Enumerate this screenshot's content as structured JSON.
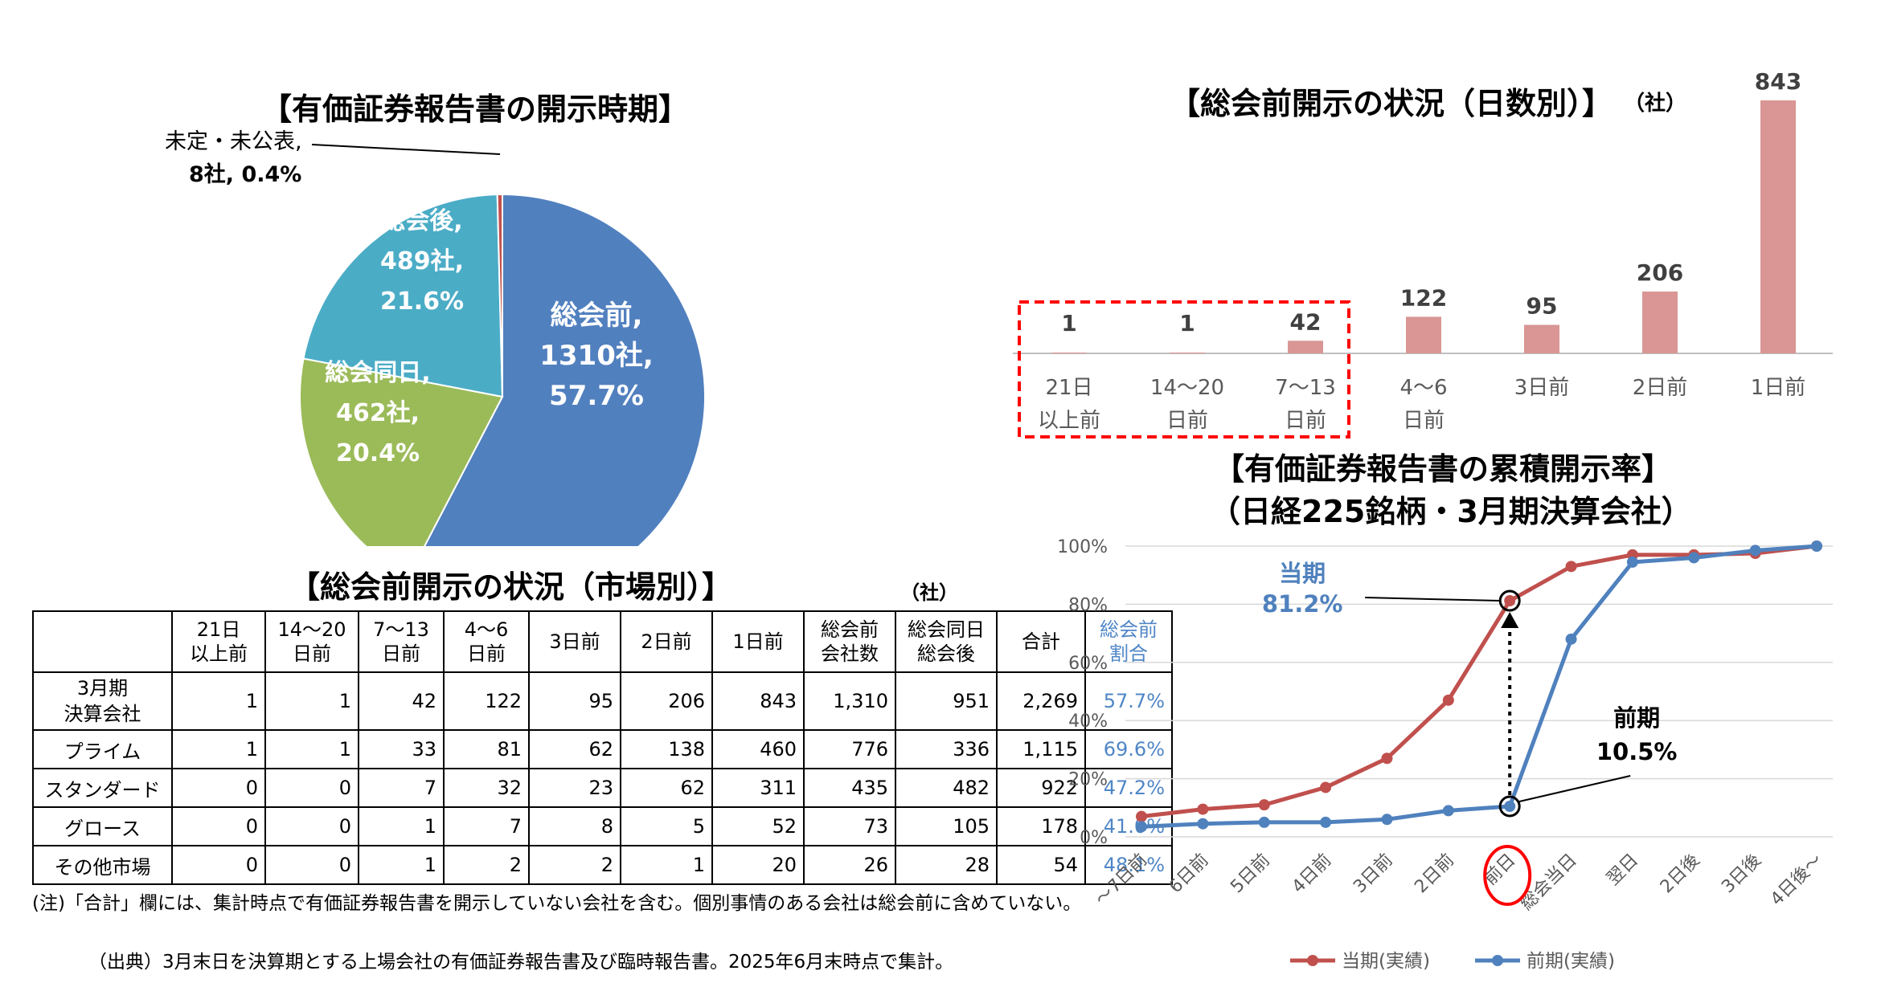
{
  "pie": {
    "title": "【有価証券報告書の開示時期】",
    "slices": [
      {
        "label": "総会前,",
        "count": "1310社,",
        "pct": "57.7%",
        "value": 57.7,
        "color": "#5180bf"
      },
      {
        "label": "総会同日,",
        "count": "462社,",
        "pct": "20.4%",
        "value": 20.4,
        "color": "#9bbb59"
      },
      {
        "label": "総会後,",
        "count": "489社,",
        "pct": "21.6%",
        "value": 21.6,
        "color": "#4bacc6"
      },
      {
        "label": "未定・未公表,",
        "count": "8社,",
        "pct": "0.4%",
        "value": 0.4,
        "color": "#c0504d"
      }
    ]
  },
  "bar": {
    "title": "【総会前開示の状況（日数別）】",
    "unit": "（社）",
    "color": "#d99694",
    "bars": [
      {
        "l1": "21日",
        "l2": "以上前",
        "v": 1
      },
      {
        "l1": "14〜20",
        "l2": "日前",
        "v": 1
      },
      {
        "l1": "7〜13",
        "l2": "日前",
        "v": 42
      },
      {
        "l1": "4〜6",
        "l2": "日前",
        "v": 122
      },
      {
        "l1": "3日前",
        "l2": "",
        "v": 95
      },
      {
        "l1": "2日前",
        "l2": "",
        "v": 206
      },
      {
        "l1": "1日前",
        "l2": "",
        "v": 843
      }
    ]
  },
  "table": {
    "title": "【総会前開示の状況（市場別）】",
    "unit": "（社）",
    "headers": [
      [
        "",
        ""
      ],
      [
        "21日",
        "以上前"
      ],
      [
        "14〜20",
        "日前"
      ],
      [
        "7〜13",
        "日前"
      ],
      [
        "4〜6",
        "日前"
      ],
      [
        "3日前",
        ""
      ],
      [
        "2日前",
        ""
      ],
      [
        "1日前",
        ""
      ],
      [
        "総会前",
        "会社数"
      ],
      [
        "総会同日",
        "総会後"
      ],
      [
        "合計",
        ""
      ],
      [
        "総会前",
        "割合"
      ]
    ],
    "rows": [
      {
        "name1": "3月期",
        "name2": "決算会社",
        "cells": [
          "1",
          "1",
          "42",
          "122",
          "95",
          "206",
          "843",
          "1,310",
          "951",
          "2,269",
          "57.7%"
        ]
      },
      {
        "name1": "プライム",
        "name2": "",
        "cells": [
          "1",
          "1",
          "33",
          "81",
          "62",
          "138",
          "460",
          "776",
          "336",
          "1,115",
          "69.6%"
        ]
      },
      {
        "name1": "スタンダード",
        "name2": "",
        "cells": [
          "0",
          "0",
          "7",
          "32",
          "23",
          "62",
          "311",
          "435",
          "482",
          "922",
          "47.2%"
        ]
      },
      {
        "name1": "グロース",
        "name2": "",
        "cells": [
          "0",
          "0",
          "1",
          "7",
          "8",
          "5",
          "52",
          "73",
          "105",
          "178",
          "41.0%"
        ]
      },
      {
        "name1": "その他市場",
        "name2": "",
        "cells": [
          "0",
          "0",
          "1",
          "2",
          "2",
          "1",
          "20",
          "26",
          "28",
          "54",
          "48.1%"
        ]
      }
    ]
  },
  "notes": {
    "note1": "(注)「合計」欄には、集計時点で有価証券報告書を開示していない会社を含む。個別事情のある会社は総会前に含めていない。",
    "note2": "（出典）3月末日を決算期とする上場会社の有価証券報告書及び臨時報告書。2025年6月末時点で集計。"
  },
  "line": {
    "title1": "【有価証券報告書の累積開示率】",
    "title2": "（日経225銘柄・3月期決算会社）",
    "categories": [
      "〜7日前",
      "6日前",
      "5日前",
      "4日前",
      "3日前",
      "2日前",
      "前日",
      "総会当日",
      "翌日",
      "2日後",
      "3日後",
      "4日後〜"
    ],
    "ylim": [
      0,
      100
    ],
    "yticks": [
      "0%",
      "20%",
      "40%",
      "60%",
      "80%",
      "100%"
    ],
    "series": [
      {
        "name": "当期(実績)",
        "color": "#c0504d",
        "values": [
          7,
          9.5,
          11,
          17,
          27,
          47,
          81.2,
          93,
          97,
          97,
          97.5,
          100
        ]
      },
      {
        "name": "前期(実績)",
        "color": "#4f81bd",
        "values": [
          3.5,
          4.5,
          5,
          5,
          6,
          9,
          10.5,
          68,
          94.5,
          96,
          98.5,
          100
        ]
      }
    ],
    "callout_current": {
      "label": "当期",
      "value": "81.2%"
    },
    "callout_previous": {
      "label": "前期",
      "value": "10.5%"
    }
  }
}
